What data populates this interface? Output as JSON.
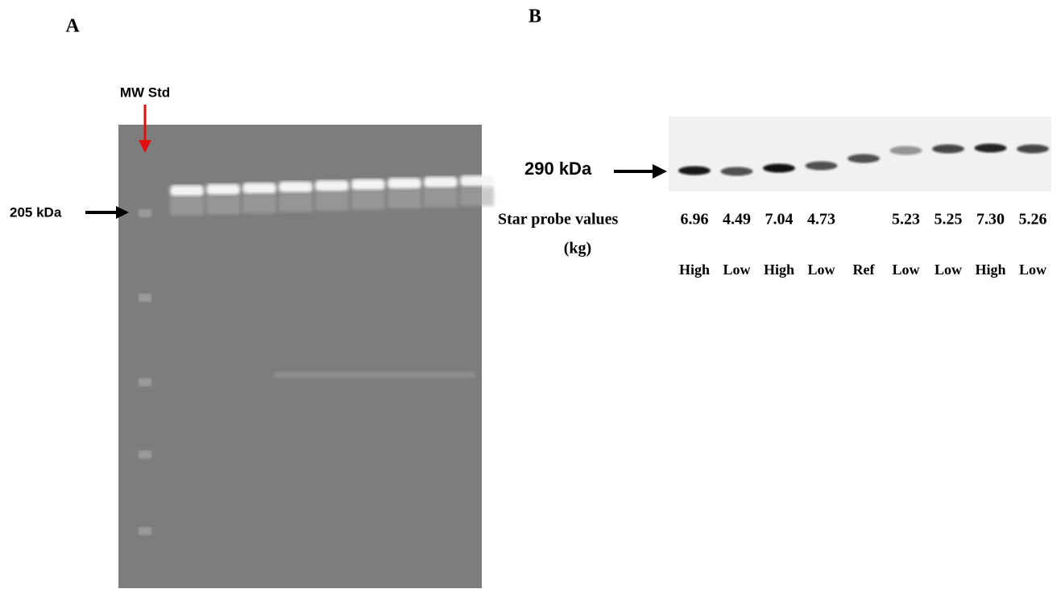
{
  "panel_a": {
    "label": "A",
    "mw_label": "MW Std",
    "marker_label": "205 kDa"
  },
  "panel_b": {
    "label": "B",
    "marker_label": "290 kDa",
    "values_label": "Star probe values",
    "units_label": "(kg)",
    "lanes": [
      {
        "value": "6.96",
        "group": "High"
      },
      {
        "value": "4.49",
        "group": "Low"
      },
      {
        "value": "7.04",
        "group": "High"
      },
      {
        "value": "4.73",
        "group": "Low"
      },
      {
        "value": null,
        "group": "Ref"
      },
      {
        "value": "5.23",
        "group": "Low"
      },
      {
        "value": "5.25",
        "group": "Low"
      },
      {
        "value": "7.30",
        "group": "High"
      },
      {
        "value": "5.26",
        "group": "Low"
      }
    ]
  }
}
